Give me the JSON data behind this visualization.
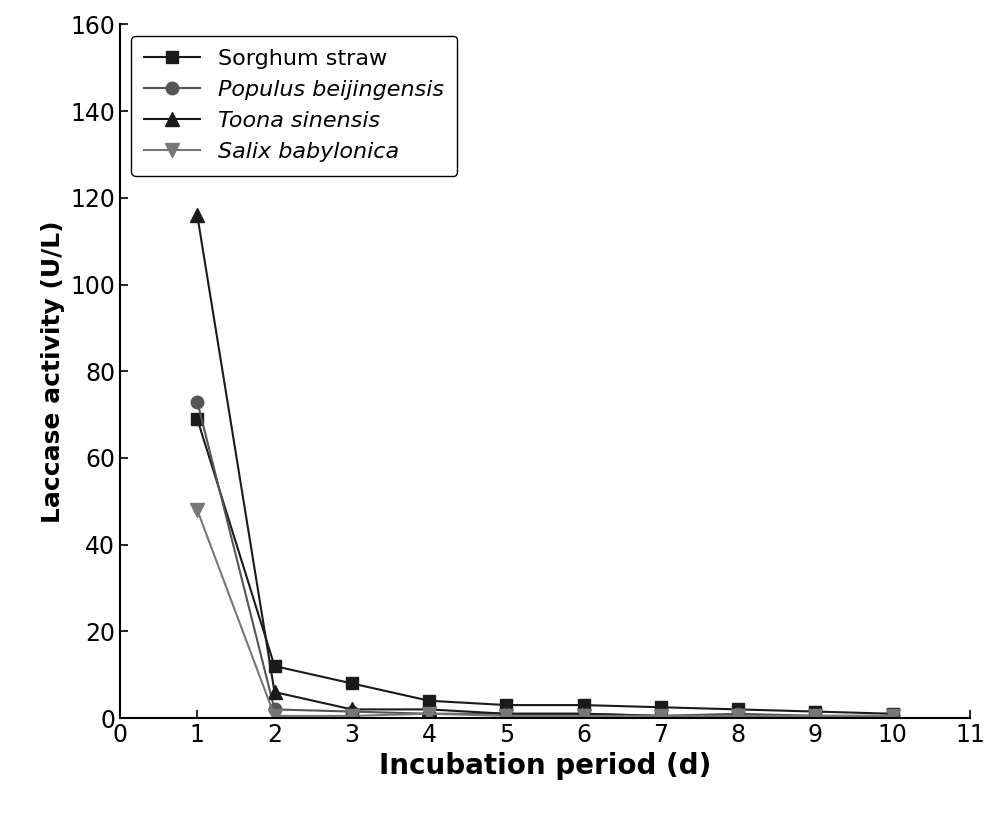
{
  "x": [
    1,
    2,
    3,
    4,
    5,
    6,
    7,
    8,
    9,
    10
  ],
  "series": [
    {
      "label": "Sorghum straw",
      "values": [
        69,
        12,
        8,
        4,
        3,
        3,
        2.5,
        2,
        1.5,
        1
      ],
      "color": "#1a1a1a",
      "marker": "s",
      "markersize": 9,
      "italic": false
    },
    {
      "label": "Populus beijingensis",
      "values": [
        73,
        2,
        1.5,
        1,
        1,
        1,
        0.5,
        1,
        0.5,
        0.5
      ],
      "color": "#555555",
      "marker": "o",
      "markersize": 9,
      "italic": true
    },
    {
      "label": "Toona sinensis",
      "values": [
        116,
        6,
        2,
        2,
        1,
        1,
        0.5,
        0.5,
        0.5,
        0.5
      ],
      "color": "#1a1a1a",
      "marker": "^",
      "markersize": 10,
      "italic": true
    },
    {
      "label": "Salix babylonica",
      "values": [
        48,
        0.5,
        0.5,
        1,
        0.5,
        0.5,
        0.5,
        0.5,
        0.5,
        0.5
      ],
      "color": "#777777",
      "marker": "v",
      "markersize": 10,
      "italic": true
    }
  ],
  "xlim": [
    0,
    11
  ],
  "ylim": [
    0,
    160
  ],
  "xticks": [
    0,
    1,
    2,
    3,
    4,
    5,
    6,
    7,
    8,
    9,
    10,
    11
  ],
  "yticks": [
    0,
    20,
    40,
    60,
    80,
    100,
    120,
    140,
    160
  ],
  "xlabel": "Incubation period (d)",
  "ylabel": "Laccase activity (U/L)",
  "xlabel_fontsize": 20,
  "ylabel_fontsize": 18,
  "tick_fontsize": 17,
  "legend_fontsize": 16,
  "legend_loc": "upper left",
  "background_color": "#ffffff",
  "linewidth": 1.5,
  "spine_linewidth": 1.5
}
